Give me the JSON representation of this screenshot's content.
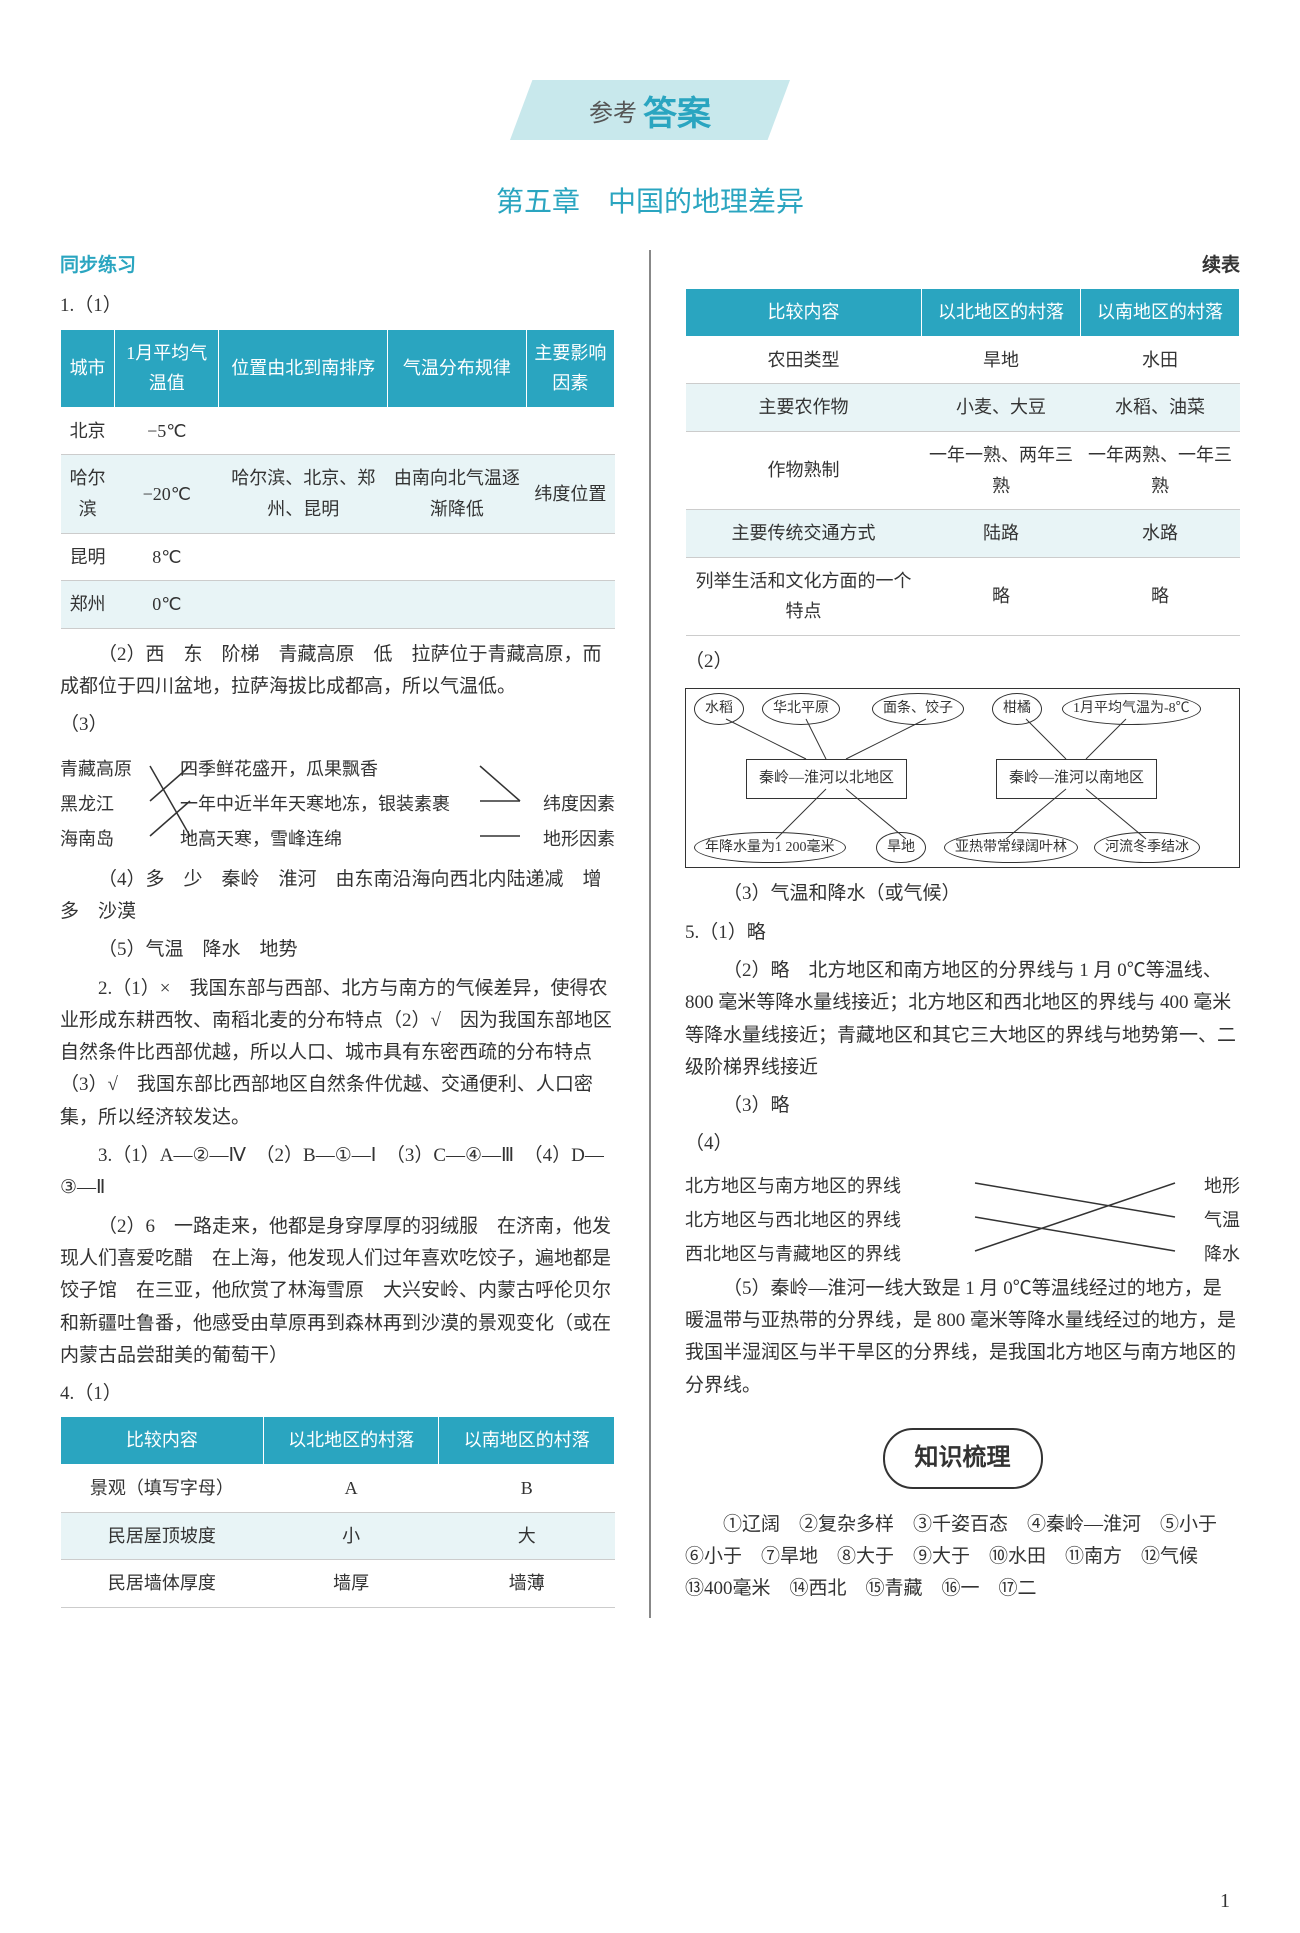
{
  "header": {
    "title_small": "参考",
    "title_big": "答案"
  },
  "chapter": "第五章　中国的地理差异",
  "left": {
    "section_label": "同步练习",
    "q1_label": "1.（1）",
    "table1": {
      "headers": [
        "城市",
        "1月平均气温值",
        "位置由北到南排序",
        "气温分布规律",
        "主要影响因素"
      ],
      "rows": [
        [
          "北京",
          "−5℃",
          "",
          "",
          ""
        ],
        [
          "哈尔滨",
          "−20℃",
          "哈尔滨、北京、郑州、昆明",
          "由南向北气温逐渐降低",
          "纬度位置"
        ],
        [
          "昆明",
          "8℃",
          "",
          "",
          ""
        ],
        [
          "郑州",
          "0℃",
          "",
          "",
          ""
        ]
      ]
    },
    "p2": "（2）西　东　阶梯　青藏高原　低　拉萨位于青藏高原，而成都位于四川盆地，拉萨海拔比成都高，所以气温低。",
    "p3_label": "（3）",
    "match1": {
      "left": [
        "青藏高原",
        "黑龙江",
        "海南岛"
      ],
      "mid": [
        "四季鲜花盛开，瓜果飘香",
        "一年中近半年天寒地冻，银装素裹",
        "地高天寒，雪峰连绵"
      ],
      "right": [
        "",
        "纬度因素",
        "地形因素"
      ]
    },
    "p4": "（4）多　少　秦岭　淮河　由东南沿海向西北内陆递减　增多　沙漠",
    "p5": "（5）气温　降水　地势",
    "p6": "2.（1）×　我国东部与西部、北方与南方的气候差异，使得农业形成东耕西牧、南稻北麦的分布特点（2）√　因为我国东部地区自然条件比西部优越，所以人口、城市具有东密西疏的分布特点（3）√　我国东部比西部地区自然条件优越、交通便利、人口密集，所以经济较发达。",
    "p7": "3.（1）A—②—Ⅳ　（2）B—①—Ⅰ　（3）C—④—Ⅲ　（4）D—③—Ⅱ",
    "p8": "（2）6　一路走来，他都是身穿厚厚的羽绒服　在济南，他发现人们喜爱吃醋　在上海，他发现人们过年喜欢吃饺子，遍地都是饺子馆　在三亚，他欣赏了林海雪原　大兴安岭、内蒙古呼伦贝尔和新疆吐鲁番，他感受由草原再到森林再到沙漠的景观变化（或在内蒙古品尝甜美的葡萄干）",
    "p9_label": "4.（1）",
    "table2": {
      "headers": [
        "比较内容",
        "以北地区的村落",
        "以南地区的村落"
      ],
      "rows": [
        [
          "景观（填写字母）",
          "A",
          "B"
        ],
        [
          "民居屋顶坡度",
          "小",
          "大"
        ],
        [
          "民居墙体厚度",
          "墙厚",
          "墙薄"
        ]
      ]
    }
  },
  "right": {
    "cont_label": "续表",
    "table3": {
      "headers": [
        "比较内容",
        "以北地区的村落",
        "以南地区的村落"
      ],
      "rows": [
        [
          "农田类型",
          "旱地",
          "水田"
        ],
        [
          "主要农作物",
          "小麦、大豆",
          "水稻、油菜"
        ],
        [
          "作物熟制",
          "一年一熟、两年三熟",
          "一年两熟、一年三熟"
        ],
        [
          "主要传统交通方式",
          "陆路",
          "水路"
        ],
        [
          "列举生活和文化方面的一个特点",
          "略",
          "略"
        ]
      ]
    },
    "p2_label": "（2）",
    "diagram": {
      "top_ovals": [
        "水稻",
        "华北平原",
        "面条、饺子",
        "柑橘",
        "1月平均气温为-8℃"
      ],
      "boxes": [
        "秦岭—淮河以北地区",
        "秦岭—淮河以南地区"
      ],
      "bottom_ovals": [
        "年降水量为1 200毫米",
        "旱地",
        "亚热带常绿阔叶林",
        "河流冬季结冰"
      ]
    },
    "p3": "（3）气温和降水（或气候）",
    "p4": "5.（1）略",
    "p5": "（2）略　北方地区和南方地区的分界线与 1 月 0℃等温线、800 毫米等降水量线接近；北方地区和西北地区的界线与 400 毫米等降水量线接近；青藏地区和其它三大地区的界线与地势第一、二级阶梯界线接近",
    "p6": "（3）略",
    "p7_label": "（4）",
    "match2": {
      "left": [
        "北方地区与南方地区的界线",
        "北方地区与西北地区的界线",
        "西北地区与青藏地区的界线"
      ],
      "right": [
        "地形",
        "气温",
        "降水"
      ]
    },
    "p8": "（5）秦岭—淮河一线大致是 1 月 0℃等温线经过的地方，是暖温带与亚热带的分界线，是 800 毫米等降水量线经过的地方，是我国半湿润区与半干旱区的分界线，是我国北方地区与南方地区的分界线。",
    "knowledge_title": "知识梳理",
    "knowledge_text": "①辽阔　②复杂多样　③千姿百态　④秦岭—淮河　⑤小于　⑥小于　⑦旱地　⑧大于　⑨大于　⑩水田　⑪南方　⑫气候　⑬400毫米　⑭西北　⑮青藏　⑯一　⑰二"
  },
  "page_number": "1",
  "colors": {
    "accent": "#2aa5c0",
    "banner_bg": "#c8e8ec",
    "text": "#333333"
  }
}
